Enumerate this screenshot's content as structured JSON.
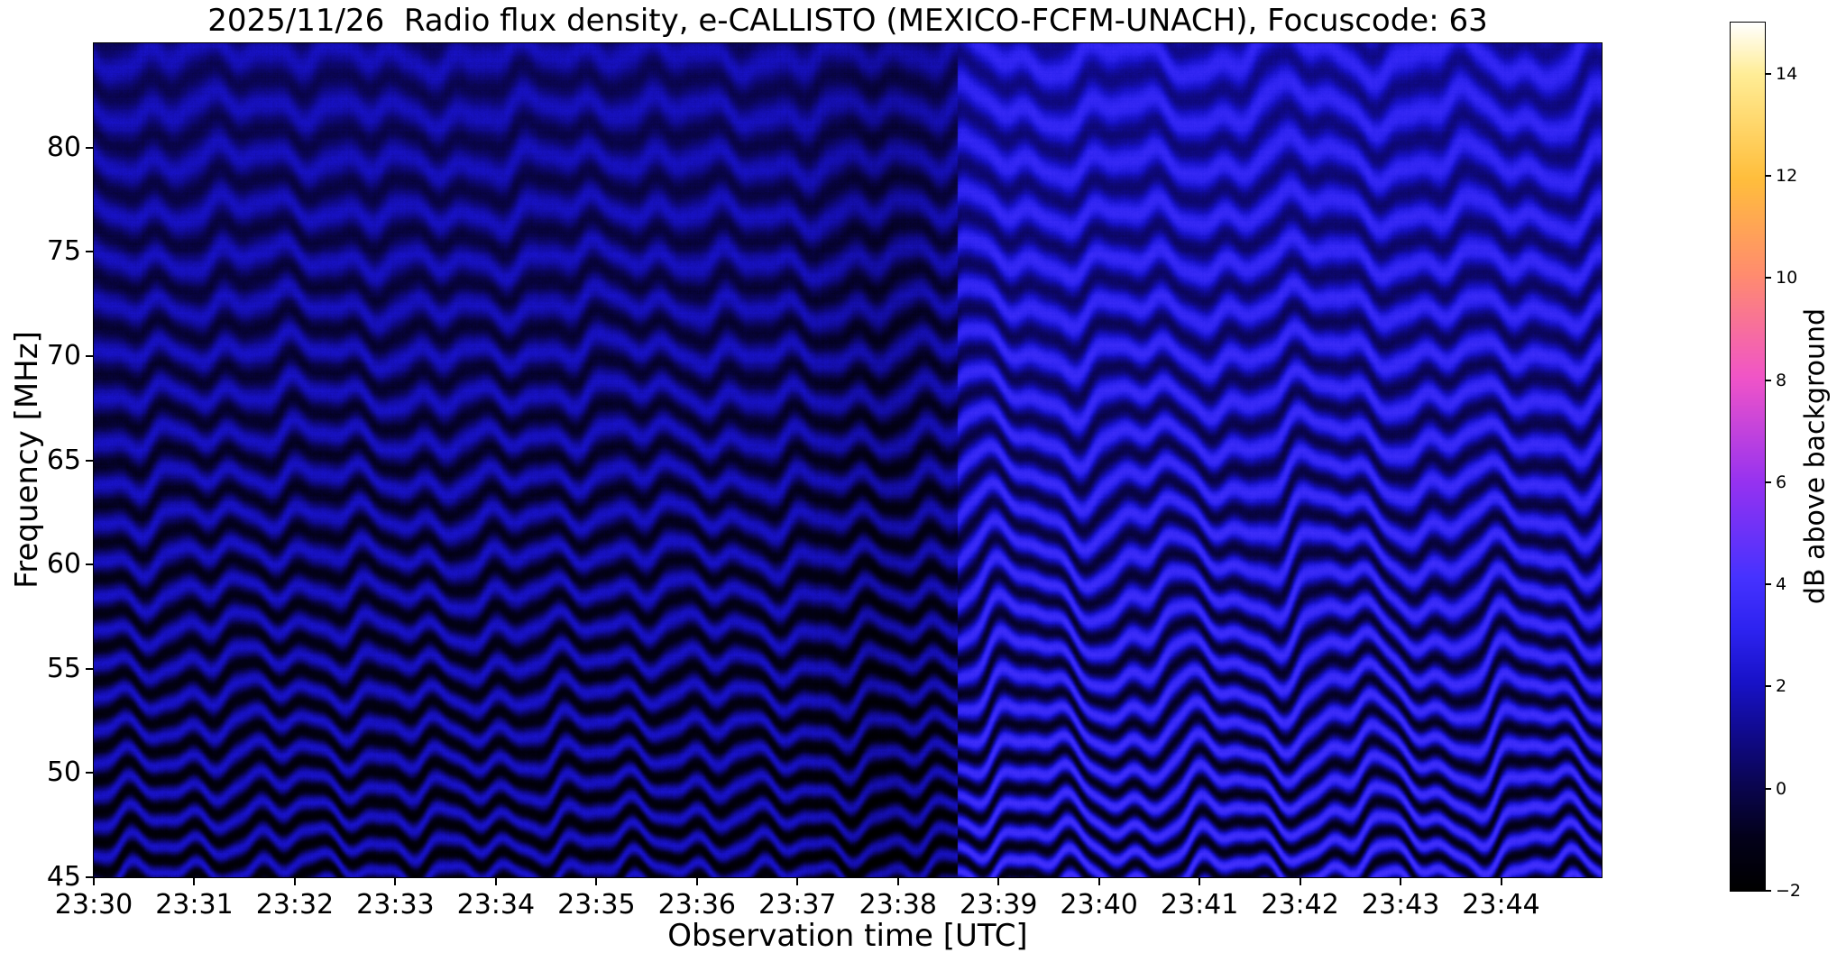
{
  "chart_data": {
    "type": "heatmap",
    "title": "2025/11/26  Radio flux density, e-CALLISTO (MEXICO-FCFM-UNACH), Focuscode: 63",
    "xlabel": "Observation time [UTC]",
    "ylabel": "Frequency [MHz]",
    "x_axis": {
      "start": "23:30",
      "end": "23:45",
      "span_minutes": 15,
      "tick_labels": [
        "23:30",
        "23:31",
        "23:32",
        "23:33",
        "23:34",
        "23:35",
        "23:36",
        "23:37",
        "23:38",
        "23:39",
        "23:40",
        "23:41",
        "23:42",
        "23:43",
        "23:44"
      ]
    },
    "y_axis": {
      "lim": [
        45,
        85
      ],
      "ticks": [
        45,
        50,
        55,
        60,
        65,
        70,
        75,
        80
      ]
    },
    "colorbar": {
      "label": "dB above background",
      "range": [
        -2,
        15
      ],
      "tick_values": [
        -2,
        0,
        2,
        4,
        6,
        8,
        10,
        12,
        14
      ],
      "tick_labels": [
        "−2",
        "0",
        "2",
        "4",
        "6",
        "8",
        "10",
        "12",
        "14"
      ],
      "colormap": "gnuplot2-like",
      "stops": [
        [
          0.0,
          "#000000"
        ],
        [
          0.06,
          "#03011a"
        ],
        [
          0.12,
          "#0a0550"
        ],
        [
          0.18,
          "#100a8c"
        ],
        [
          0.24,
          "#1812c8"
        ],
        [
          0.3,
          "#2d23f0"
        ],
        [
          0.36,
          "#4632ff"
        ],
        [
          0.47,
          "#9632f0"
        ],
        [
          0.59,
          "#f054c8"
        ],
        [
          0.71,
          "#ff8c6e"
        ],
        [
          0.82,
          "#ffbe3c"
        ],
        [
          0.94,
          "#ffed96"
        ],
        [
          1.0,
          "#ffffff"
        ]
      ]
    },
    "pattern": {
      "description": "Dynamic radio spectrum dominated by wavy horizontal interference fringes in dark blue and black (about -2 to +3 dB). Fringe spacing grows from ~1.25 MHz at 45 MHz to ~2.6 MHz at 85 MHz. Background level brightens abruptly by ~1 dB at about 23:38.6 UTC, with larger slow undulations afterwards; a slightly darker vertical band precedes the transition near 23:37-23:38.5.",
      "value_range_db": [
        -2,
        3.5
      ],
      "params": {
        "transition": 0.573,
        "spacing0": 1.25,
        "spacingGrowth": 0.035,
        "base0": 0.15,
        "baseSlope": 0.85,
        "amp0": 1.9,
        "ampSlope": -1.05,
        "stepBoost": 1.15,
        "stepAmpBoost": 0.35,
        "rowNoise": 0.22,
        "colNoise": 0.18,
        "pixNoise": 0.3,
        "darkBandT": 0.525,
        "darkBandW": 0.045,
        "darkBandAmp": 0.4,
        "waves": [
          {
            "cycles": 24,
            "amp": 0.38,
            "phase": 0.7,
            "fphase": 0.13,
            "rightOnly": false
          },
          {
            "cycles": 9.5,
            "amp": 0.3,
            "phase": 2.1,
            "fphase": 0.28,
            "rightOnly": false
          },
          {
            "cycles": 45,
            "amp": 0.14,
            "phase": 4.0,
            "fphase": 0.06,
            "rightOnly": false
          },
          {
            "cycles": 4.3,
            "amp": 0.25,
            "phase": 1.1,
            "fphase": 0.02,
            "rightOnly": false
          },
          {
            "cycles": 9,
            "amp": 0.75,
            "phase": 0.3,
            "fphase": 0.1,
            "rightOnly": true
          }
        ]
      }
    }
  }
}
